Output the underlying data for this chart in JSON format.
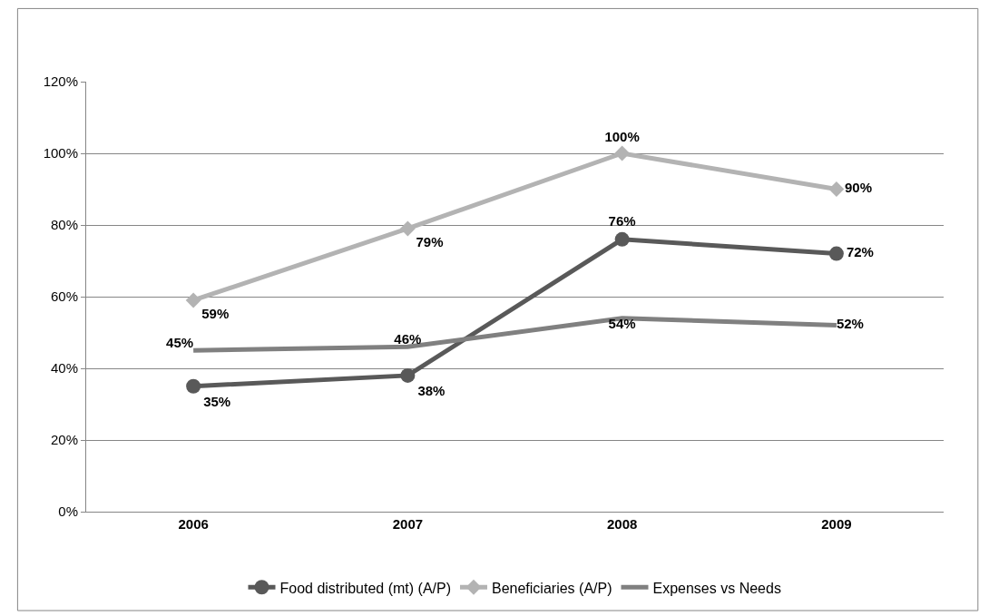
{
  "chart_data": {
    "type": "line",
    "categories": [
      "2006",
      "2007",
      "2008",
      "2009"
    ],
    "series": [
      {
        "name": "Food distributed (mt) (A/P)",
        "color": "#595959",
        "marker": "circle",
        "values": [
          35,
          38,
          76,
          72
        ],
        "value_labels": [
          "35%",
          "38%",
          "76%",
          "72%"
        ]
      },
      {
        "name": "Beneficiaries (A/P)",
        "color": "#b3b3b3",
        "marker": "diamond",
        "values": [
          59,
          79,
          100,
          90
        ],
        "value_labels": [
          "59%",
          "79%",
          "100%",
          "90%"
        ]
      },
      {
        "name": "Expenses vs Needs",
        "color": "#808080",
        "marker": "none",
        "values": [
          45,
          46,
          54,
          52
        ],
        "value_labels": [
          "45%",
          "46%",
          "54%",
          "52%"
        ]
      }
    ],
    "ylim": [
      0,
      120
    ],
    "yticks": [
      {
        "value": 0,
        "label": "0%"
      },
      {
        "value": 20,
        "label": "20%"
      },
      {
        "value": 40,
        "label": "40%"
      },
      {
        "value": 60,
        "label": "60%"
      },
      {
        "value": 80,
        "label": "80%"
      },
      {
        "value": 100,
        "label": "100%"
      },
      {
        "value": 120,
        "label": "120%"
      }
    ],
    "grid": "y",
    "legend": "bottom",
    "line_style": "solid"
  }
}
